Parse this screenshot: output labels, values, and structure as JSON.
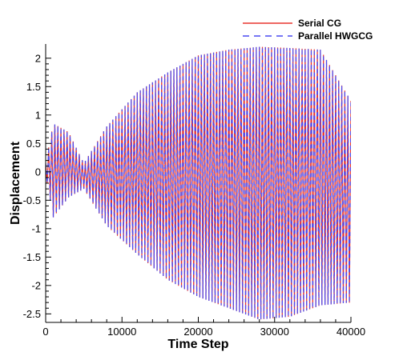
{
  "chart_data": {
    "type": "line",
    "title": "",
    "xlabel": "Time Step",
    "ylabel": "Displacement",
    "xlim": [
      0,
      40000
    ],
    "ylim": [
      -2.65,
      2.25
    ],
    "x_ticks": [
      0,
      10000,
      20000,
      30000,
      40000
    ],
    "y_ticks": [
      -2.5,
      -2,
      -1.5,
      -1,
      -0.5,
      0,
      0.5,
      1,
      1.5,
      2
    ],
    "grid": false,
    "legend_placement": "top-right",
    "signal": {
      "description_free": true,
      "sample_step": 400,
      "x_start": 0,
      "x_end": 40000,
      "upper_envelope": [
        [
          0,
          0.15
        ],
        [
          1000,
          0.85
        ],
        [
          3000,
          0.7
        ],
        [
          5000,
          0.15
        ],
        [
          8000,
          0.8
        ],
        [
          12000,
          1.4
        ],
        [
          16000,
          1.75
        ],
        [
          20000,
          2.05
        ],
        [
          24000,
          2.15
        ],
        [
          28000,
          2.2
        ],
        [
          32000,
          2.18
        ],
        [
          36000,
          2.15
        ],
        [
          40000,
          1.25
        ]
      ],
      "lower_envelope": [
        [
          0,
          -0.05
        ],
        [
          1000,
          -0.8
        ],
        [
          3000,
          -0.45
        ],
        [
          5000,
          -0.3
        ],
        [
          8000,
          -0.95
        ],
        [
          12000,
          -1.45
        ],
        [
          16000,
          -1.9
        ],
        [
          20000,
          -2.2
        ],
        [
          24000,
          -2.4
        ],
        [
          28000,
          -2.6
        ],
        [
          32000,
          -2.55
        ],
        [
          36000,
          -2.35
        ],
        [
          40000,
          -2.3
        ]
      ]
    },
    "series": [
      {
        "name": "Serial CG",
        "color": "#e8352e",
        "dash": "solid"
      },
      {
        "name": "Parallel HWGCG",
        "color": "#4a4af0",
        "dash": "dashed"
      }
    ]
  }
}
